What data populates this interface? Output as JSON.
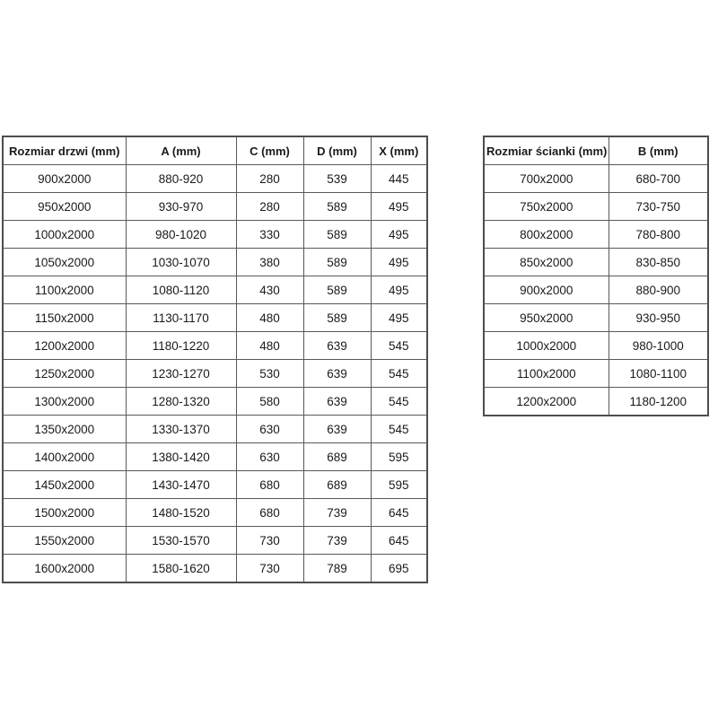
{
  "page": {
    "background_color": "#ffffff",
    "text_color": "#1a1a1a",
    "border_color": "#595959"
  },
  "door_table": {
    "headers": [
      "Rozmiar drzwi (mm)",
      "A (mm)",
      "C (mm)",
      "D (mm)",
      "X (mm)"
    ],
    "rows": [
      [
        "900x2000",
        "880-920",
        "280",
        "539",
        "445"
      ],
      [
        "950x2000",
        "930-970",
        "280",
        "589",
        "495"
      ],
      [
        "1000x2000",
        "980-1020",
        "330",
        "589",
        "495"
      ],
      [
        "1050x2000",
        "1030-1070",
        "380",
        "589",
        "495"
      ],
      [
        "1100x2000",
        "1080-1120",
        "430",
        "589",
        "495"
      ],
      [
        "1150x2000",
        "1130-1170",
        "480",
        "589",
        "495"
      ],
      [
        "1200x2000",
        "1180-1220",
        "480",
        "639",
        "545"
      ],
      [
        "1250x2000",
        "1230-1270",
        "530",
        "639",
        "545"
      ],
      [
        "1300x2000",
        "1280-1320",
        "580",
        "639",
        "545"
      ],
      [
        "1350x2000",
        "1330-1370",
        "630",
        "639",
        "545"
      ],
      [
        "1400x2000",
        "1380-1420",
        "630",
        "689",
        "595"
      ],
      [
        "1450x2000",
        "1430-1470",
        "680",
        "689",
        "595"
      ],
      [
        "1500x2000",
        "1480-1520",
        "680",
        "739",
        "645"
      ],
      [
        "1550x2000",
        "1530-1570",
        "730",
        "739",
        "645"
      ],
      [
        "1600x2000",
        "1580-1620",
        "730",
        "789",
        "695"
      ]
    ]
  },
  "wall_table": {
    "headers": [
      "Rozmiar ścianki (mm)",
      "B (mm)"
    ],
    "rows": [
      [
        "700x2000",
        "680-700"
      ],
      [
        "750x2000",
        "730-750"
      ],
      [
        "800x2000",
        "780-800"
      ],
      [
        "850x2000",
        "830-850"
      ],
      [
        "900x2000",
        "880-900"
      ],
      [
        "950x2000",
        "930-950"
      ],
      [
        "1000x2000",
        "980-1000"
      ],
      [
        "1100x2000",
        "1080-1100"
      ],
      [
        "1200x2000",
        "1180-1200"
      ]
    ]
  }
}
